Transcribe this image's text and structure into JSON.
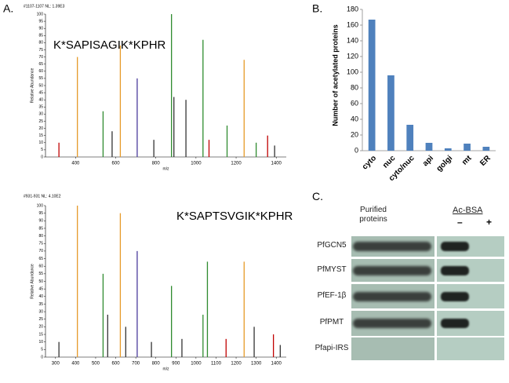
{
  "chart_data": [
    {
      "type": "stem",
      "panel": "A.",
      "header": "#1107-1107 NL: 1.39E3",
      "annotation": "K*SAPISAGIK*KPHR",
      "ylabel": "Relative Abundance",
      "xlabel": "m/z",
      "x": [
        317,
        409,
        537,
        582,
        623,
        707,
        790,
        878,
        890,
        950,
        1035,
        1065,
        1155,
        1240,
        1300,
        1357,
        1392
      ],
      "values": [
        10,
        70,
        32,
        18,
        78,
        55,
        12,
        100,
        42,
        40,
        82,
        12,
        22,
        68,
        10,
        15,
        8
      ],
      "colors": [
        "#c00000",
        "#e69a28",
        "#2e8b2e",
        "#333333",
        "#e69a28",
        "#4b3c9c",
        "#333333",
        "#2e8b2e",
        "#333333",
        "#333333",
        "#2e8b2e",
        "#c00000",
        "#2e8b2e",
        "#e69a28",
        "#2e8b2e",
        "#c00000",
        "#333333"
      ],
      "xlim": [
        250,
        1450
      ],
      "xticks": [
        400,
        600,
        800,
        1000,
        1200,
        1400
      ],
      "ylim": [
        0,
        100
      ],
      "yticks": [
        0,
        5,
        10,
        15,
        20,
        25,
        30,
        35,
        40,
        45,
        50,
        55,
        60,
        65,
        70,
        75,
        80,
        85,
        90,
        95,
        100
      ]
    },
    {
      "type": "stem",
      "header": "#931-931 NL: 4.10E2",
      "annotation": "K*SAPTSVGIK*KPHR",
      "ylabel": "Relative Abundance",
      "xlabel": "m/z",
      "x": [
        317,
        409,
        537,
        560,
        623,
        650,
        707,
        778,
        878,
        930,
        1035,
        1057,
        1150,
        1240,
        1290,
        1386,
        1420
      ],
      "values": [
        10,
        100,
        55,
        28,
        95,
        20,
        70,
        10,
        47,
        12,
        28,
        63,
        12,
        63,
        20,
        15,
        8
      ],
      "colors": [
        "#333333",
        "#e69a28",
        "#2e8b2e",
        "#333333",
        "#e69a28",
        "#333333",
        "#4b3c9c",
        "#333333",
        "#2e8b2e",
        "#333333",
        "#2e8b2e",
        "#2e8b2e",
        "#c00000",
        "#e69a28",
        "#333333",
        "#c00000",
        "#333333"
      ],
      "xlim": [
        250,
        1450
      ],
      "xticks": [
        300,
        400,
        500,
        600,
        700,
        800,
        900,
        1000,
        1100,
        1200,
        1300,
        1400
      ],
      "ylim": [
        0,
        100
      ],
      "yticks": [
        0,
        5,
        10,
        15,
        20,
        25,
        30,
        35,
        40,
        45,
        50,
        55,
        60,
        65,
        70,
        75,
        80,
        85,
        90,
        95,
        100
      ]
    },
    {
      "type": "bar",
      "panel": "B.",
      "ylabel": "Number of acetylated proteins",
      "categories": [
        "cyto",
        "nuc",
        "cyto/nuc",
        "api",
        "golgi",
        "mt",
        "ER"
      ],
      "values": [
        167,
        96,
        33,
        10,
        3,
        9,
        5
      ],
      "color": "#4f81bd",
      "ylim": [
        0,
        180
      ],
      "yticks": [
        0,
        20,
        40,
        60,
        80,
        100,
        120,
        140,
        160,
        180
      ]
    }
  ],
  "blot": {
    "panel": "C.",
    "header": "Purified proteins",
    "group": "Ac-BSA",
    "lanes": [
      "–",
      "+"
    ],
    "rows": [
      "PfGCN5",
      "PfMYST",
      "PfEF-1β",
      "PfPMT",
      "Pfapi-IRS"
    ]
  }
}
